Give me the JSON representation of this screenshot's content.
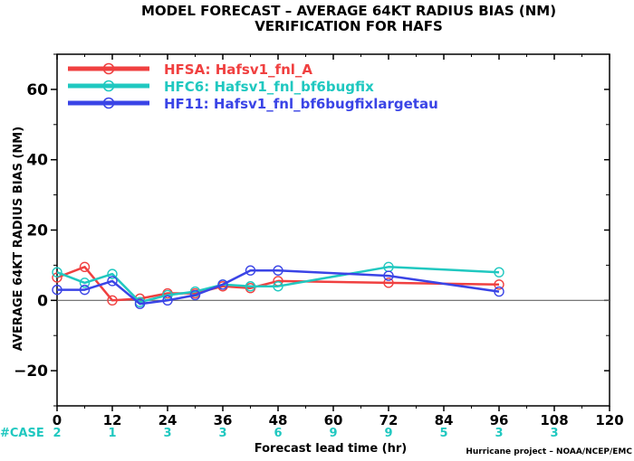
{
  "chart_data": {
    "type": "line",
    "title": "MODEL FORECAST – AVERAGE 64KT RADIUS BIAS (NM)",
    "subtitle": "VERIFICATION FOR HAFS",
    "xlabel": "Forecast lead time (hr)",
    "ylabel": "AVERAGE 64KT RADIUS BIAS (NM)",
    "xlim": [
      0,
      120
    ],
    "ylim": [
      -30,
      70
    ],
    "x_ticks": [
      0,
      12,
      24,
      36,
      48,
      60,
      72,
      84,
      96,
      108,
      120
    ],
    "y_ticks": [
      -20,
      0,
      20,
      40,
      60
    ],
    "grid": false,
    "legend_position": "top-left",
    "zero_line": true,
    "series": [
      {
        "name": "HFSA: Hafsv1_fnl_A",
        "color": "#f04040",
        "points": [
          [
            0,
            6.5
          ],
          [
            6,
            9.5
          ],
          [
            12,
            0
          ],
          [
            18,
            0.5
          ],
          [
            24,
            2
          ],
          [
            30,
            2
          ],
          [
            36,
            4
          ],
          [
            42,
            3.5
          ],
          [
            48,
            5.5
          ],
          [
            72,
            5
          ],
          [
            96,
            4.5
          ]
        ]
      },
      {
        "name": "HFC6: Hafsv1_fnl_bf6bugfix",
        "color": "#20c8c0",
        "points": [
          [
            0,
            8
          ],
          [
            6,
            5
          ],
          [
            12,
            7.5
          ],
          [
            18,
            -0.5
          ],
          [
            24,
            1.5
          ],
          [
            30,
            2.5
          ],
          [
            36,
            4.5
          ],
          [
            42,
            4
          ],
          [
            48,
            4
          ],
          [
            72,
            9.5
          ],
          [
            96,
            8
          ]
        ]
      },
      {
        "name": "HF11: Hafsv1_fnl_bf6bugfixlargetau",
        "color": "#3a44e6",
        "points": [
          [
            0,
            3
          ],
          [
            6,
            3
          ],
          [
            12,
            5.5
          ],
          [
            18,
            -1
          ],
          [
            24,
            0
          ],
          [
            30,
            1.5
          ],
          [
            36,
            4.5
          ],
          [
            42,
            8.5
          ],
          [
            48,
            8.5
          ],
          [
            72,
            7
          ],
          [
            96,
            2.5
          ]
        ]
      }
    ],
    "case_label": "#CASE",
    "cases": [
      {
        "x": 0,
        "n": "2"
      },
      {
        "x": 12,
        "n": "1"
      },
      {
        "x": 24,
        "n": "3"
      },
      {
        "x": 36,
        "n": "3"
      },
      {
        "x": 48,
        "n": "6"
      },
      {
        "x": 60,
        "n": "9"
      },
      {
        "x": 72,
        "n": "9"
      },
      {
        "x": 84,
        "n": "5"
      },
      {
        "x": 96,
        "n": "3"
      },
      {
        "x": 108,
        "n": "3"
      }
    ],
    "case_color": "#20c8c0",
    "credit": "Hurricane project – NOAA/NCEP/EMC"
  }
}
